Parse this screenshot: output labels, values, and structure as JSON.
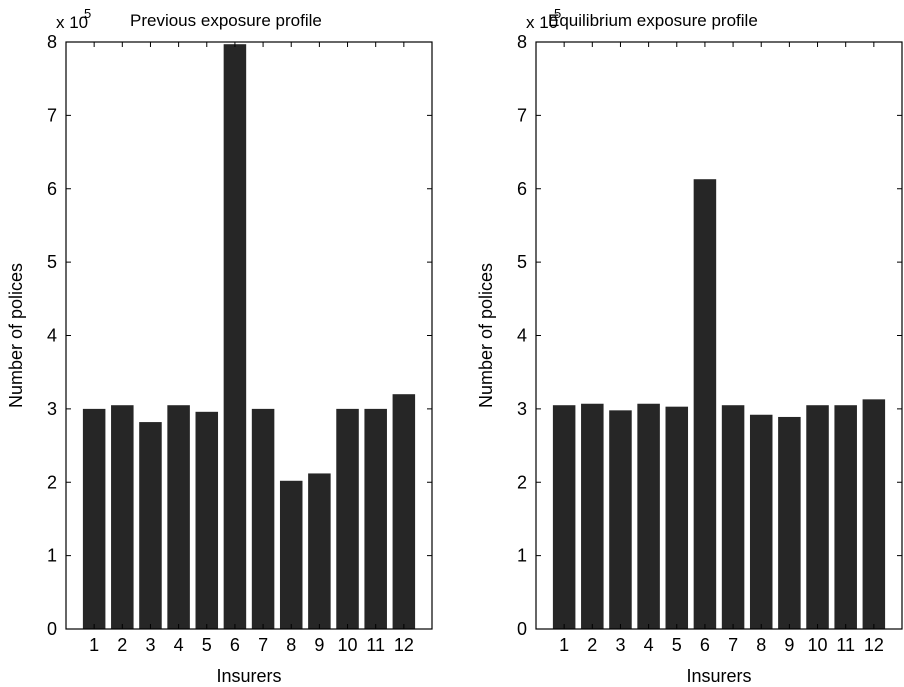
{
  "chart_data": [
    {
      "type": "bar",
      "title": "Previous exposure profile",
      "xlabel": "Insurers",
      "ylabel": "Number of polices",
      "y_multiplier": "x 10",
      "y_multiplier_exponent": "5",
      "categories": [
        "1",
        "2",
        "3",
        "4",
        "5",
        "6",
        "7",
        "8",
        "9",
        "10",
        "11",
        "12"
      ],
      "values": [
        3.0,
        3.05,
        2.82,
        3.05,
        2.96,
        7.97,
        3.0,
        2.02,
        2.12,
        3.0,
        3.0,
        3.2
      ],
      "ylim": [
        0,
        8
      ],
      "yticks": [
        "0",
        "1",
        "2",
        "3",
        "4",
        "5",
        "6",
        "7",
        "8"
      ],
      "grid": false,
      "bar_color": "#262626"
    },
    {
      "type": "bar",
      "title": "Equilibrium exposure profile",
      "xlabel": "Insurers",
      "ylabel": "Number of polices",
      "y_multiplier": "x 10",
      "y_multiplier_exponent": "5",
      "categories": [
        "1",
        "2",
        "3",
        "4",
        "5",
        "6",
        "7",
        "8",
        "9",
        "10",
        "11",
        "12"
      ],
      "values": [
        3.05,
        3.07,
        2.98,
        3.07,
        3.03,
        6.13,
        3.05,
        2.92,
        2.89,
        3.05,
        3.05,
        3.13
      ],
      "ylim": [
        0,
        8
      ],
      "yticks": [
        "0",
        "1",
        "2",
        "3",
        "4",
        "5",
        "6",
        "7",
        "8"
      ],
      "grid": false,
      "bar_color": "#262626"
    }
  ]
}
